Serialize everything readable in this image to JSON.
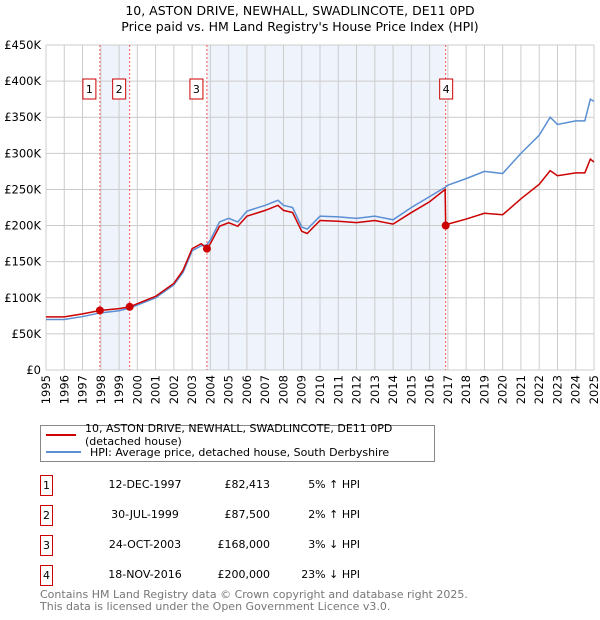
{
  "chart_data": {
    "type": "line",
    "title": [
      "10, ASTON DRIVE, NEWHALL, SWADLINCOTE, DE11 0PD",
      "Price paid vs. HM Land Registry's House Price Index (HPI)"
    ],
    "xlim": [
      1995,
      2025
    ],
    "ylim": [
      0,
      450000
    ],
    "x_ticks": [
      "1995",
      "1996",
      "1997",
      "1998",
      "1999",
      "2000",
      "2001",
      "2002",
      "2003",
      "2004",
      "2005",
      "2006",
      "2007",
      "2008",
      "2009",
      "2010",
      "2011",
      "2012",
      "2013",
      "2014",
      "2015",
      "2016",
      "2017",
      "2018",
      "2019",
      "2020",
      "2021",
      "2022",
      "2023",
      "2024",
      "2025"
    ],
    "y_ticks": [
      {
        "v": 0,
        "label": "£0"
      },
      {
        "v": 50000,
        "label": "£50K"
      },
      {
        "v": 100000,
        "label": "£100K"
      },
      {
        "v": 150000,
        "label": "£150K"
      },
      {
        "v": 200000,
        "label": "£200K"
      },
      {
        "v": 250000,
        "label": "£250K"
      },
      {
        "v": 300000,
        "label": "£300K"
      },
      {
        "v": 350000,
        "label": "£350K"
      },
      {
        "v": 400000,
        "label": "£400K"
      },
      {
        "v": 450000,
        "label": "£450K"
      }
    ],
    "series": [
      {
        "name": "HPI: Average price, detached house, South Derbyshire",
        "color": "#5b8fd4",
        "x": [
          1995,
          1996,
          1997,
          1997.95,
          1999,
          1999.6,
          2000,
          2001,
          2002,
          2002.5,
          2003,
          2003.5,
          2003.8,
          2004,
          2004.5,
          2005,
          2005.5,
          2006,
          2007,
          2007.7,
          2008,
          2008.5,
          2009,
          2009.3,
          2010,
          2011,
          2012,
          2013,
          2014,
          2015,
          2016,
          2016.85,
          2017,
          2018,
          2019,
          2020,
          2021,
          2022,
          2022.6,
          2023,
          2024,
          2024.5,
          2024.8,
          2025
        ],
        "y": [
          70000,
          70000,
          74000,
          79000,
          82000,
          86000,
          90000,
          100000,
          118000,
          135000,
          165000,
          172000,
          173000,
          180000,
          205000,
          210000,
          205000,
          220000,
          228000,
          235000,
          228000,
          225000,
          198000,
          195000,
          213000,
          212000,
          210000,
          213000,
          208000,
          225000,
          240000,
          253000,
          256000,
          265000,
          275000,
          272000,
          300000,
          325000,
          350000,
          340000,
          345000,
          345000,
          375000,
          372000
        ]
      },
      {
        "name": "10, ASTON DRIVE, NEWHALL, SWADLINCOTE, DE11 0PD (detached house)",
        "color": "#cc0000",
        "x": [
          1995,
          1996,
          1997,
          1997.95,
          1999,
          1999.6,
          2000,
          2001,
          2002,
          2002.5,
          2003,
          2003.5,
          2003.8,
          2004,
          2004.5,
          2005,
          2005.5,
          2006,
          2007,
          2007.7,
          2008,
          2008.5,
          2009,
          2009.3,
          2010,
          2011,
          2012,
          2013,
          2014,
          2015,
          2016,
          2016.85,
          2016.88,
          2017,
          2018,
          2019,
          2020,
          2021,
          2022,
          2022.6,
          2023,
          2024,
          2024.5,
          2024.8,
          2025
        ],
        "y": [
          73500,
          73500,
          77700,
          82413,
          85000,
          87500,
          91800,
          102000,
          120000,
          138000,
          168000,
          175000,
          168000,
          175000,
          199000,
          204000,
          199000,
          213000,
          221000,
          228000,
          221000,
          218000,
          192000,
          189000,
          207000,
          206000,
          204000,
          207000,
          202000,
          218000,
          233000,
          250000,
          200000,
          202000,
          209000,
          217000,
          215000,
          237000,
          257000,
          276000,
          269000,
          273000,
          273000,
          292000,
          288000
        ]
      }
    ],
    "sales": [
      {
        "n": "1",
        "x": 1997.95,
        "y": 82413
      },
      {
        "n": "2",
        "x": 1999.58,
        "y": 87500
      },
      {
        "n": "3",
        "x": 2003.81,
        "y": 168000
      },
      {
        "n": "4",
        "x": 2016.88,
        "y": 200000
      }
    ],
    "shaded": [
      [
        1997.95,
        1999.58
      ],
      [
        2003.81,
        2016.88
      ]
    ]
  },
  "legend": {
    "property": "10, ASTON DRIVE, NEWHALL, SWADLINCOTE, DE11 0PD (detached house)",
    "hpi": "HPI: Average price, detached house, South Derbyshire"
  },
  "transactions": [
    {
      "n": "1",
      "date": "12-DEC-1997",
      "price": "£82,413",
      "hpi": "5% ↑ HPI"
    },
    {
      "n": "2",
      "date": "30-JUL-1999",
      "price": "£87,500",
      "hpi": "2% ↑ HPI"
    },
    {
      "n": "3",
      "date": "24-OCT-2003",
      "price": "£168,000",
      "hpi": "3% ↓ HPI"
    },
    {
      "n": "4",
      "date": "18-NOV-2016",
      "price": "£200,000",
      "hpi": "23% ↓ HPI"
    }
  ],
  "footer": [
    "Contains HM Land Registry data © Crown copyright and database right 2025.",
    "This data is licensed under the Open Government Licence v3.0."
  ]
}
